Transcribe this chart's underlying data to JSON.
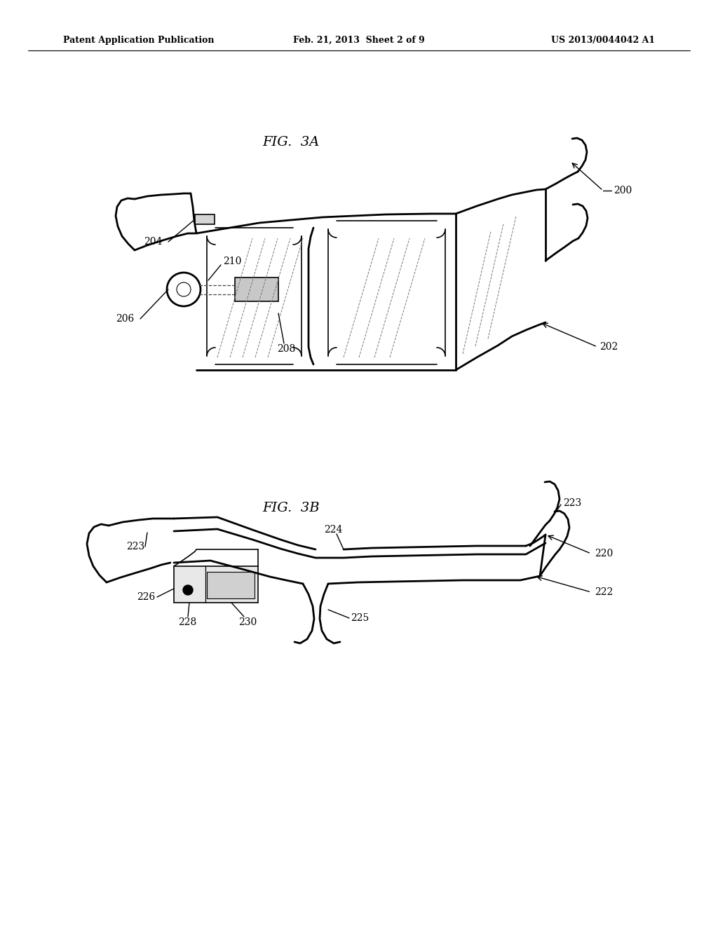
{
  "background_color": "#ffffff",
  "header_left": "Patent Application Publication",
  "header_center": "Feb. 21, 2013  Sheet 2 of 9",
  "header_right": "US 2013/0044042 A1",
  "fig3a_label": "FIG.  3A",
  "fig3b_label": "FIG.  3B",
  "line_color": "#000000",
  "lw_main": 2.0,
  "lw_thin": 1.2,
  "lw_leader": 1.0
}
